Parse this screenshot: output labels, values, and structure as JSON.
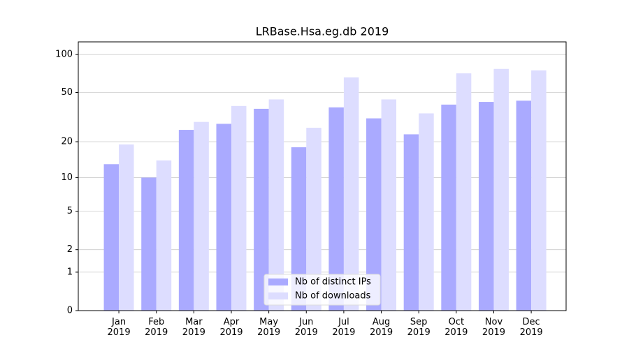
{
  "chart_data": {
    "type": "bar",
    "title": "LRBase.Hsa.eg.db 2019",
    "scale": "log1p",
    "categories": [
      "Jan\n2019",
      "Feb\n2019",
      "Mar\n2019",
      "Apr\n2019",
      "May\n2019",
      "Jun\n2019",
      "Jul\n2019",
      "Aug\n2019",
      "Sep\n2019",
      "Oct\n2019",
      "Nov\n2019",
      "Dec\n2019"
    ],
    "series": [
      {
        "name": "Nb of distinct IPs",
        "color": "#aaaaff",
        "values": [
          13,
          10,
          25,
          28,
          37,
          18,
          38,
          31,
          23,
          40,
          42,
          43
        ]
      },
      {
        "name": "Nb of downloads",
        "color": "#ddddff",
        "values": [
          19,
          14,
          29,
          39,
          44,
          26,
          66,
          44,
          34,
          71,
          77,
          75
        ]
      }
    ],
    "ylim": [
      0,
      126
    ],
    "yticks": [
      0,
      1,
      2,
      5,
      10,
      20,
      50,
      100
    ],
    "grid": true,
    "legend": "lower center"
  }
}
